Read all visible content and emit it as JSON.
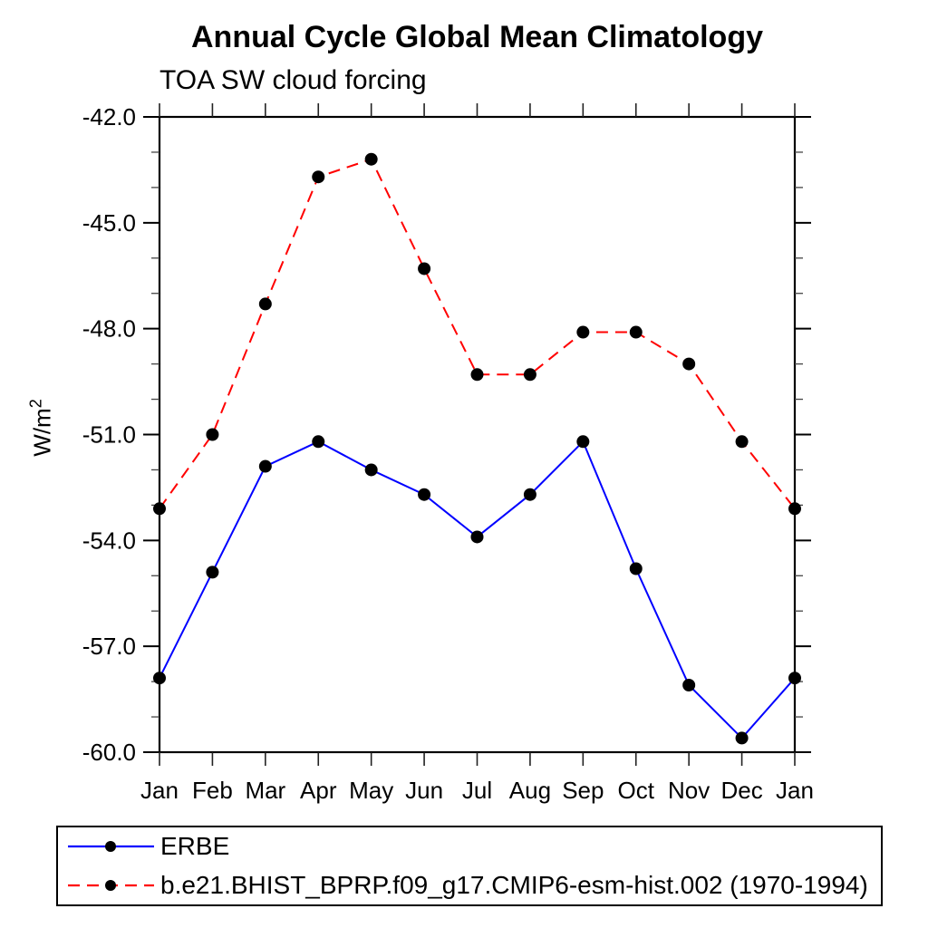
{
  "chart_data": {
    "type": "line",
    "title": "Annual Cycle Global Mean Climatology",
    "subtitle": "TOA SW cloud forcing",
    "ylabel_base": "W/m",
    "ylabel_exponent": "2",
    "categories": [
      "Jan",
      "Feb",
      "Mar",
      "Apr",
      "May",
      "Jun",
      "Jul",
      "Aug",
      "Sep",
      "Oct",
      "Nov",
      "Dec",
      "Jan"
    ],
    "ylim": [
      -60.0,
      -42.0
    ],
    "ytick_labels": [
      "-42.0",
      "-45.0",
      "-48.0",
      "-51.0",
      "-54.0",
      "-57.0",
      "-60.0"
    ],
    "ytick_values": [
      -42.0,
      -45.0,
      -48.0,
      -51.0,
      -54.0,
      -57.0,
      -60.0
    ],
    "minor_tick_step": 1.0,
    "grid": false,
    "legend_position": "bottom-left",
    "marker_shape": "filled-circle",
    "marker_color": "#000000",
    "series": [
      {
        "name": "ERBE",
        "color": "#0000ff",
        "line_style": "solid",
        "values": [
          -57.9,
          -54.9,
          -51.9,
          -51.2,
          -52.0,
          -52.7,
          -53.9,
          -52.7,
          -51.2,
          -54.8,
          -58.1,
          -59.6,
          -57.9
        ]
      },
      {
        "name": "b.e21.BHIST_BPRP.f09_g17.CMIP6-esm-hist.002 (1970-1994)",
        "color": "#ff0000",
        "line_style": "dashed",
        "values": [
          -53.1,
          -51.0,
          -47.3,
          -43.7,
          -43.2,
          -46.3,
          -49.3,
          -49.3,
          -48.1,
          -48.1,
          -49.0,
          -51.2,
          -53.1
        ]
      }
    ]
  }
}
